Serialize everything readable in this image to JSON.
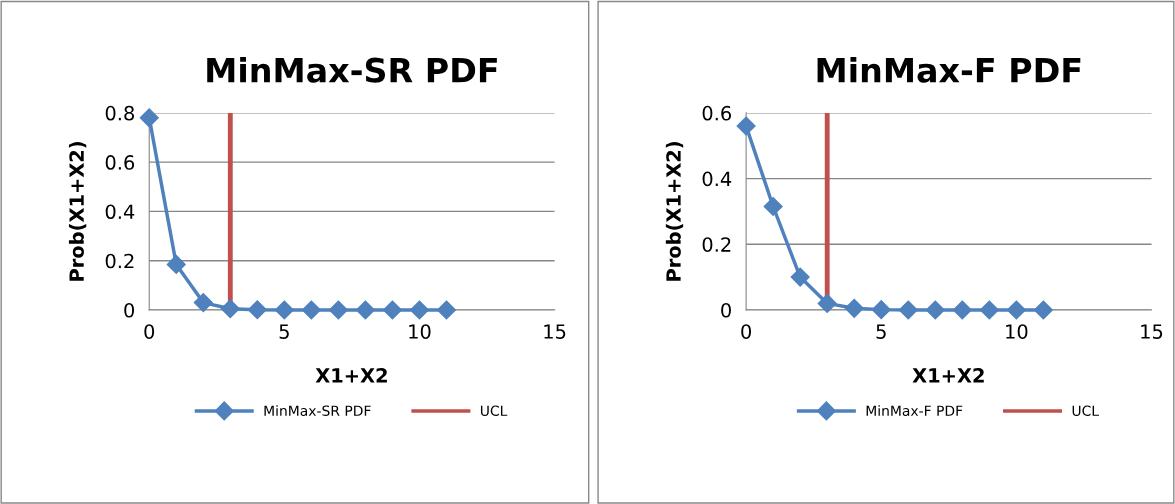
{
  "chart_data": [
    {
      "type": "line",
      "title": "MinMax-SR PDF",
      "xlabel": "X1+X2",
      "ylabel": "Prob(X1+X2)",
      "x": [
        0,
        1,
        2,
        3,
        4,
        5,
        6,
        7,
        8,
        9,
        10,
        11
      ],
      "series": [
        {
          "name": "MinMax-SR PDF",
          "color": "#4f81bd",
          "values": [
            0.78,
            0.185,
            0.03,
            0.005,
            0.001,
            0,
            0,
            0,
            0,
            0,
            0,
            0
          ]
        }
      ],
      "ref_lines": [
        {
          "axis": "x",
          "value": 3,
          "label": "UCL",
          "color": "#c0504d"
        }
      ],
      "xlim": [
        0,
        15
      ],
      "xticks": [
        0,
        5,
        10,
        15
      ],
      "ylim": [
        0,
        0.8
      ],
      "yticks": [
        0,
        0.2,
        0.4,
        0.6,
        0.8
      ],
      "grid": "y",
      "legend": "bottom",
      "marker": "diamond",
      "line_style": "solid"
    },
    {
      "type": "line",
      "title": "MinMax-F PDF",
      "xlabel": "X1+X2",
      "ylabel": "Prob(X1+X2)",
      "x": [
        0,
        1,
        2,
        3,
        4,
        5,
        6,
        7,
        8,
        9,
        10,
        11
      ],
      "series": [
        {
          "name": "MinMax-F PDF",
          "color": "#4f81bd",
          "values": [
            0.56,
            0.315,
            0.1,
            0.02,
            0.005,
            0.001,
            0,
            0,
            0,
            0,
            0,
            0
          ]
        }
      ],
      "ref_lines": [
        {
          "axis": "x",
          "value": 3,
          "label": "UCL",
          "color": "#c0504d"
        }
      ],
      "xlim": [
        0,
        15
      ],
      "xticks": [
        0,
        5,
        10,
        15
      ],
      "ylim": [
        0,
        0.6
      ],
      "yticks": [
        0,
        0.2,
        0.4,
        0.6
      ],
      "grid": "y",
      "legend": "bottom",
      "marker": "diamond",
      "line_style": "solid"
    }
  ]
}
